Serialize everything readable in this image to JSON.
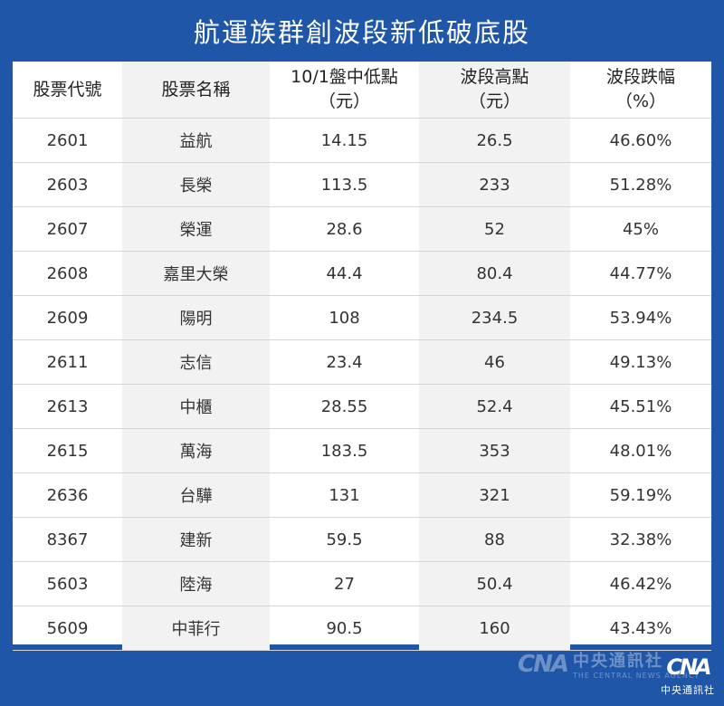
{
  "title": "航運族群創波段新低破底股",
  "headers": [
    {
      "line1": "股票代號",
      "line2": ""
    },
    {
      "line1": "股票名稱",
      "line2": ""
    },
    {
      "line1": "10/1盤中低點",
      "line2": "（元）"
    },
    {
      "line1": "波段高點",
      "line2": "（元）"
    },
    {
      "line1": "波段跌幅",
      "line2": "（%）"
    }
  ],
  "rows": [
    [
      "2601",
      "益航",
      "14.15",
      "26.5",
      "46.60%"
    ],
    [
      "2603",
      "長榮",
      "113.5",
      "233",
      "51.28%"
    ],
    [
      "2607",
      "榮運",
      "28.6",
      "52",
      "45%"
    ],
    [
      "2608",
      "嘉里大榮",
      "44.4",
      "80.4",
      "44.77%"
    ],
    [
      "2609",
      "陽明",
      "108",
      "234.5",
      "53.94%"
    ],
    [
      "2611",
      "志信",
      "23.4",
      "46",
      "49.13%"
    ],
    [
      "2613",
      "中櫃",
      "28.55",
      "52.4",
      "45.51%"
    ],
    [
      "2615",
      "萬海",
      "183.5",
      "353",
      "48.01%"
    ],
    [
      "2636",
      "台驊",
      "131",
      "321",
      "59.19%"
    ],
    [
      "8367",
      "建新",
      "59.5",
      "88",
      "32.38%"
    ],
    [
      "5603",
      "陸海",
      "27",
      "50.4",
      "46.42%"
    ],
    [
      "5609",
      "中菲行",
      "90.5",
      "160",
      "43.43%"
    ]
  ],
  "watermark": {
    "logo": "CNA",
    "name": "中央通訊社",
    "english": "THE CENTRAL NEWS AGENCY"
  },
  "logo": {
    "mark": "CNA",
    "name": "中央通訊社"
  },
  "colors": {
    "background": "#1f56a8",
    "shade": "#f2f2f2",
    "text": "#333333"
  }
}
